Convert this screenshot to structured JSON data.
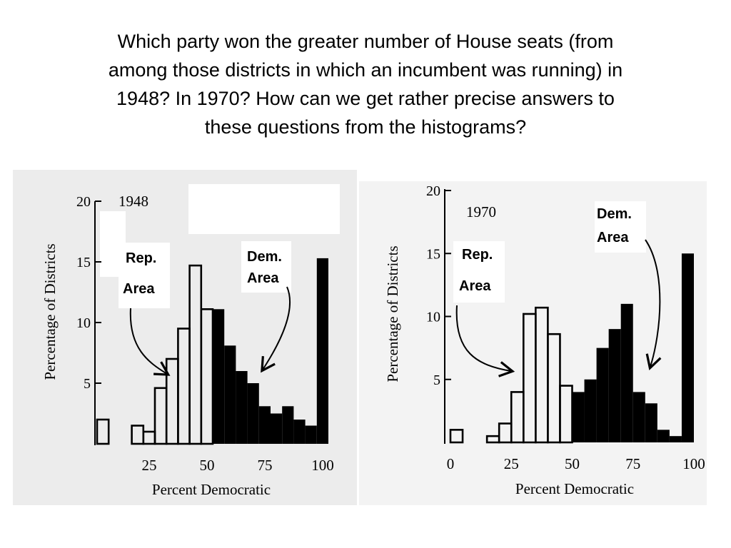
{
  "question": {
    "line1": "Which party won the greater number of House seats (from",
    "line2": "among those districts in which an incumbent was running) in",
    "line3": "1948?  In 1970?  How can we get rather precise answers to",
    "line4": "these questions from the histograms?"
  },
  "chart_data": [
    {
      "type": "bar",
      "title": "1948",
      "xlabel": "Percent Democratic",
      "ylabel": "Percentage of Districts",
      "xticks": [
        "25",
        "50",
        "75",
        "100"
      ],
      "yticks": [
        "5",
        "10",
        "15",
        "20"
      ],
      "xlim": [
        0,
        100
      ],
      "ylim": [
        0,
        20
      ],
      "bin_width": 5,
      "series": [
        {
          "name": "Rep. Area",
          "bins": [
            {
              "x": 0,
              "value": 2
            },
            {
              "x": 5,
              "value": 0
            },
            {
              "x": 10,
              "value": 0
            },
            {
              "x": 15,
              "value": 1.5
            },
            {
              "x": 20,
              "value": 1
            },
            {
              "x": 25,
              "value": 4.6
            },
            {
              "x": 30,
              "value": 7
            },
            {
              "x": 35,
              "value": 9.5
            },
            {
              "x": 40,
              "value": 14.7
            },
            {
              "x": 45,
              "value": 11.1
            }
          ]
        },
        {
          "name": "Dem. Area",
          "bins": [
            {
              "x": 50,
              "value": 11.1
            },
            {
              "x": 55,
              "value": 8.1
            },
            {
              "x": 60,
              "value": 6
            },
            {
              "x": 65,
              "value": 5
            },
            {
              "x": 70,
              "value": 3.1
            },
            {
              "x": 75,
              "value": 2.5
            },
            {
              "x": 80,
              "value": 3.1
            },
            {
              "x": 85,
              "value": 2
            },
            {
              "x": 90,
              "value": 1.5
            },
            {
              "x": 95,
              "value": 15.3
            }
          ]
        }
      ],
      "annotations": [
        {
          "text": "Rep.",
          "text2": "Area"
        },
        {
          "text": "Dem.",
          "text2": "Area"
        }
      ]
    },
    {
      "type": "bar",
      "title": "1970",
      "xlabel": "Percent Democratic",
      "ylabel": "Percentage of Districts",
      "xticks": [
        "0",
        "25",
        "50",
        "75",
        "100"
      ],
      "yticks": [
        "5",
        "10",
        "15",
        "20"
      ],
      "xlim": [
        0,
        100
      ],
      "ylim": [
        0,
        20
      ],
      "bin_width": 5,
      "series": [
        {
          "name": "Rep. Area",
          "bins": [
            {
              "x": 0,
              "value": 1
            },
            {
              "x": 5,
              "value": 0
            },
            {
              "x": 10,
              "value": 0
            },
            {
              "x": 15,
              "value": 0.5
            },
            {
              "x": 20,
              "value": 1.5
            },
            {
              "x": 25,
              "value": 4
            },
            {
              "x": 30,
              "value": 10.2
            },
            {
              "x": 35,
              "value": 10.7
            },
            {
              "x": 40,
              "value": 8.6
            },
            {
              "x": 45,
              "value": 4.5
            }
          ]
        },
        {
          "name": "Dem. Area",
          "bins": [
            {
              "x": 50,
              "value": 4
            },
            {
              "x": 55,
              "value": 5
            },
            {
              "x": 60,
              "value": 7.5
            },
            {
              "x": 65,
              "value": 9
            },
            {
              "x": 70,
              "value": 11
            },
            {
              "x": 75,
              "value": 4
            },
            {
              "x": 80,
              "value": 3.1
            },
            {
              "x": 85,
              "value": 1
            },
            {
              "x": 90,
              "value": 0.5
            },
            {
              "x": 95,
              "value": 15
            }
          ]
        }
      ],
      "annotations": [
        {
          "text": "Rep.",
          "text2": "Area"
        },
        {
          "text": "Dem.",
          "text2": "Area"
        }
      ]
    }
  ]
}
